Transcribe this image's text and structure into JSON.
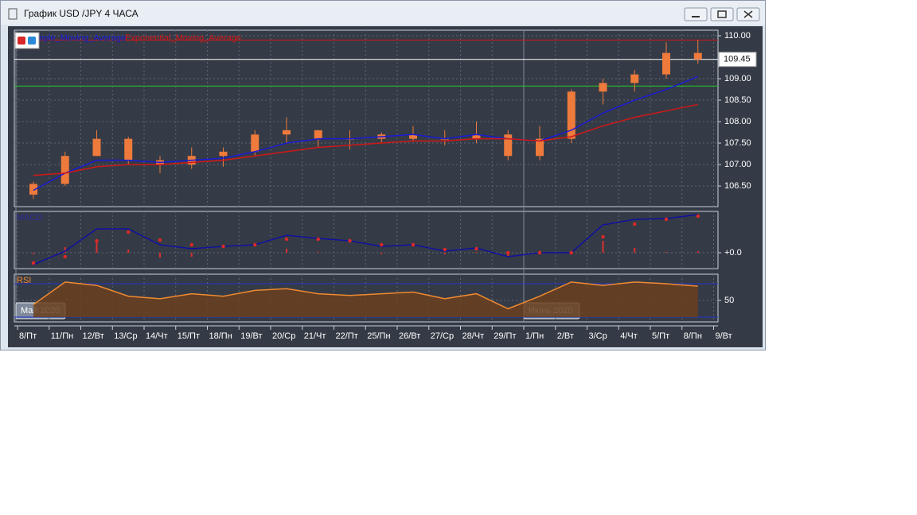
{
  "window": {
    "title": "График USD /JPY  4 ЧАСА"
  },
  "chart_data": [
    {
      "type": "candlestick",
      "categories": [
        "8/Пт",
        "11/Пн",
        "12/Вт",
        "13/Ср",
        "14/Чт",
        "15/Пт",
        "18/Пн",
        "19/Вт",
        "20/Ср",
        "21/Чт",
        "22/Пт",
        "25/Пн",
        "26/Вт",
        "27/Ср",
        "28/Чт",
        "29/Пт",
        "1/Пн",
        "2/Вт",
        "3/Ср",
        "4/Чт",
        "5/Пт",
        "8/Пн",
        "9/Вт"
      ],
      "months": [
        "Май 2020",
        null,
        null,
        null,
        null,
        null,
        null,
        null,
        null,
        null,
        null,
        null,
        null,
        null,
        null,
        null,
        "Июнь 2020",
        null,
        null,
        null,
        null,
        null,
        null
      ],
      "open": [
        106.3,
        106.55,
        107.2,
        107.6,
        107.1,
        107.0,
        107.2,
        107.3,
        107.7,
        107.8,
        107.6,
        107.6,
        107.7,
        107.6,
        107.6,
        107.7,
        107.2,
        107.6,
        108.7,
        108.9,
        109.1,
        109.6,
        null
      ],
      "high": [
        106.6,
        107.3,
        107.8,
        107.65,
        107.2,
        107.4,
        107.4,
        107.8,
        108.1,
        107.8,
        107.8,
        107.75,
        107.9,
        107.8,
        108.0,
        107.8,
        107.9,
        108.75,
        109.0,
        109.2,
        109.85,
        109.9,
        null
      ],
      "low": [
        106.2,
        106.5,
        107.2,
        107.0,
        106.8,
        106.9,
        106.95,
        107.2,
        107.5,
        107.4,
        107.35,
        107.5,
        107.55,
        107.45,
        107.5,
        107.1,
        107.1,
        107.5,
        108.4,
        108.7,
        109.0,
        109.35,
        null
      ],
      "close": [
        106.55,
        107.2,
        107.6,
        107.1,
        107.0,
        107.2,
        107.3,
        107.7,
        107.8,
        107.6,
        107.6,
        107.7,
        107.6,
        107.6,
        107.7,
        107.2,
        107.6,
        108.7,
        108.9,
        109.1,
        109.6,
        109.45,
        null
      ],
      "candle_color": "#ee7a3c",
      "series": [
        {
          "name": "Simple_Moving_Average",
          "color": "#1a1ad8",
          "values": [
            106.4,
            106.8,
            107.1,
            107.1,
            107.05,
            107.1,
            107.15,
            107.3,
            107.5,
            107.6,
            107.6,
            107.65,
            107.7,
            107.6,
            107.7,
            107.6,
            107.55,
            107.8,
            108.2,
            108.5,
            108.75,
            109.05,
            null
          ]
        },
        {
          "name": "Exponential_Moving_Average",
          "color": "#d01818",
          "values": [
            106.75,
            106.8,
            106.95,
            107.0,
            107.0,
            107.05,
            107.1,
            107.2,
            107.3,
            107.4,
            107.45,
            107.5,
            107.55,
            107.55,
            107.6,
            107.6,
            107.55,
            107.65,
            107.9,
            108.1,
            108.25,
            108.4,
            null
          ]
        }
      ],
      "levels": [
        {
          "value": 109.9,
          "color": "#d01818"
        },
        {
          "value": 109.45,
          "color": "#ffffff",
          "show_value": true
        },
        {
          "value": 108.83,
          "color": "#22cc22"
        }
      ],
      "ylim": [
        106.02,
        110.13
      ],
      "yticks": [
        {
          "value": 110,
          "label": "110.00"
        },
        {
          "value": 109,
          "label": "109.00"
        },
        {
          "value": 108.5,
          "label": "108.50"
        },
        {
          "value": 108,
          "label": "108.00"
        },
        {
          "value": 107.5,
          "label": "107.50"
        },
        {
          "value": 107,
          "label": "107.00"
        },
        {
          "value": 106.5,
          "label": "106.50"
        }
      ],
      "grid": true
    },
    {
      "type": "line",
      "title": "MACD",
      "series": [
        {
          "color": "#d83030",
          "style": "bar",
          "values": [
            -0.02,
            0.07,
            0.15,
            0.04,
            -0.06,
            -0.05,
            0,
            0,
            0.05,
            0.01,
            0,
            -0.02,
            0,
            -0.02,
            0.01,
            -0.05,
            0,
            0,
            0.15,
            0.06,
            0.01,
            0.02,
            null
          ]
        },
        {
          "color": "#1010a0",
          "values": [
            -0.15,
            0.02,
            0.3,
            0.3,
            0.1,
            0.05,
            0.08,
            0.1,
            0.22,
            0.18,
            0.15,
            0.08,
            0.1,
            0.02,
            0.06,
            -0.05,
            0,
            0,
            0.35,
            0.42,
            0.43,
            0.48,
            null
          ]
        },
        {
          "color": "#e02828",
          "style": "dot",
          "values": [
            -0.13,
            -0.05,
            0.15,
            0.26,
            0.16,
            0.1,
            0.08,
            0.1,
            0.17,
            0.17,
            0.15,
            0.1,
            0.1,
            0.04,
            0.05,
            0,
            0,
            0,
            0.2,
            0.36,
            0.42,
            0.46,
            null
          ]
        }
      ],
      "ylim": [
        -0.2,
        0.52
      ],
      "yticks": [
        {
          "value": 0,
          "label": "+0.0"
        }
      ],
      "grid": true
    },
    {
      "type": "line",
      "title": "RSI",
      "series": [
        {
          "color": "#f08a30",
          "fill": "#6a3f1e",
          "values": [
            45,
            72,
            68,
            55,
            52,
            58,
            55,
            62,
            64,
            58,
            56,
            58,
            60,
            52,
            58,
            40,
            55,
            72,
            68,
            72,
            70,
            67,
            null
          ]
        }
      ],
      "levels": [
        {
          "value": 70,
          "color": "#2233cc"
        },
        {
          "value": 30,
          "color": "#2233cc"
        }
      ],
      "ylim": [
        24.3,
        81.4
      ],
      "yticks": [
        50
      ],
      "grid": true
    }
  ]
}
